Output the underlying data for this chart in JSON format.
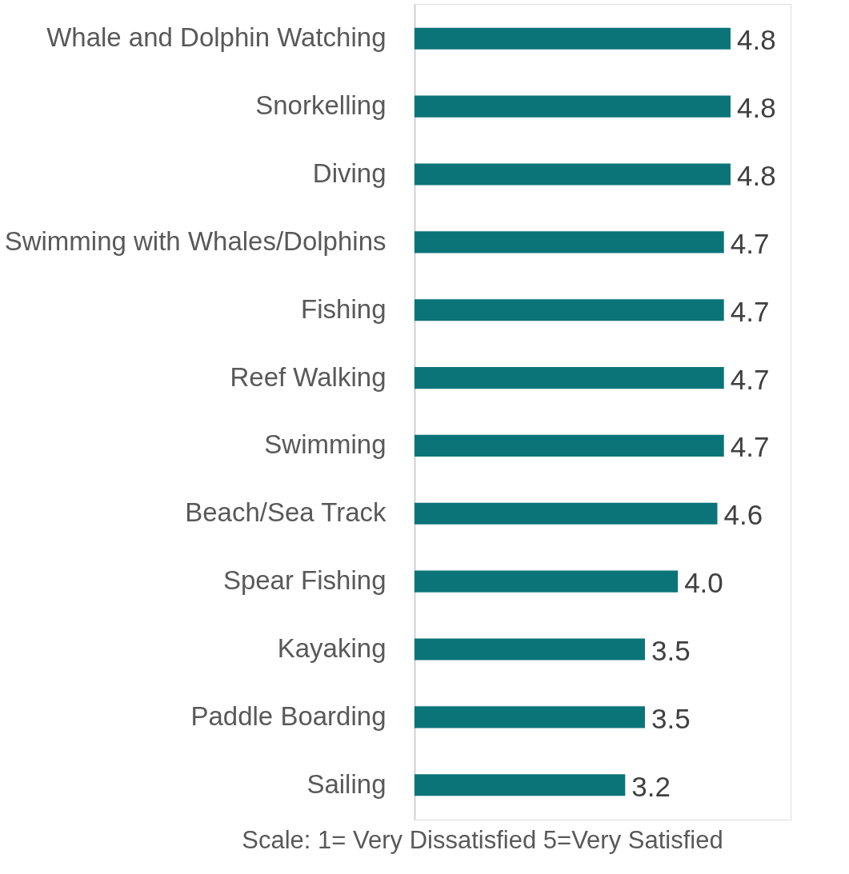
{
  "chart_data": {
    "type": "bar",
    "orientation": "horizontal",
    "categories": [
      "Whale and Dolphin Watching",
      "Snorkelling",
      "Diving",
      "Swimming with Whales/Dolphins",
      "Fishing",
      "Reef Walking",
      "Swimming",
      "Beach/Sea Track",
      "Spear Fishing",
      "Kayaking",
      "Paddle Boarding",
      "Sailing"
    ],
    "values": [
      4.8,
      4.8,
      4.8,
      4.7,
      4.7,
      4.7,
      4.7,
      4.6,
      4.0,
      3.5,
      3.5,
      3.2
    ],
    "value_labels": [
      "4.8",
      "4.8",
      "4.8",
      "4.7",
      "4.7",
      "4.7",
      "4.7",
      "4.6",
      "4.0",
      "3.5",
      "3.5",
      "3.2"
    ],
    "color": "#0b7479",
    "annotations": [
      "Scale: 1= Very Dissatisfied   5=Very Satisfied"
    ]
  }
}
